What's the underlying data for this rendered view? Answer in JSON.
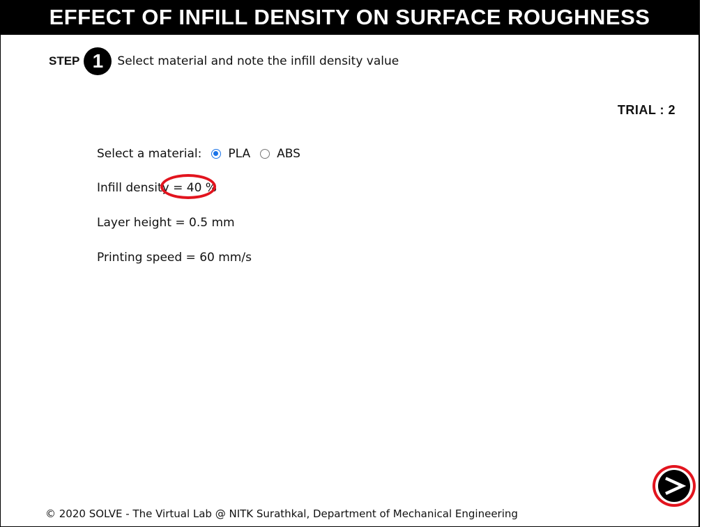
{
  "header": {
    "title": "EFFECT OF INFILL DENSITY ON SURFACE ROUGHNESS"
  },
  "step": {
    "label": "STEP",
    "number": "1",
    "instruction": "Select material and note the infill density value"
  },
  "trial": {
    "text": "TRIAL : 2"
  },
  "material": {
    "label": "Select a material:",
    "options": [
      {
        "label": "PLA",
        "selected": true
      },
      {
        "label": "ABS",
        "selected": false
      }
    ]
  },
  "params": {
    "infill_label": "Infill density",
    "infill_eq": "=",
    "infill_value": "40 %",
    "layer_height": "Layer height = 0.5 mm",
    "printing_speed": "Printing speed = 60 mm/s"
  },
  "colors": {
    "highlight": "#e2141e",
    "radio_accent": "#1a73e8",
    "title_bg": "#000000"
  },
  "icons": {
    "next": "arrow-right-icon"
  },
  "footer": {
    "text": "© 2020 SOLVE - The Virtual Lab @ NITK Surathkal, Department of Mechanical Engineering"
  }
}
